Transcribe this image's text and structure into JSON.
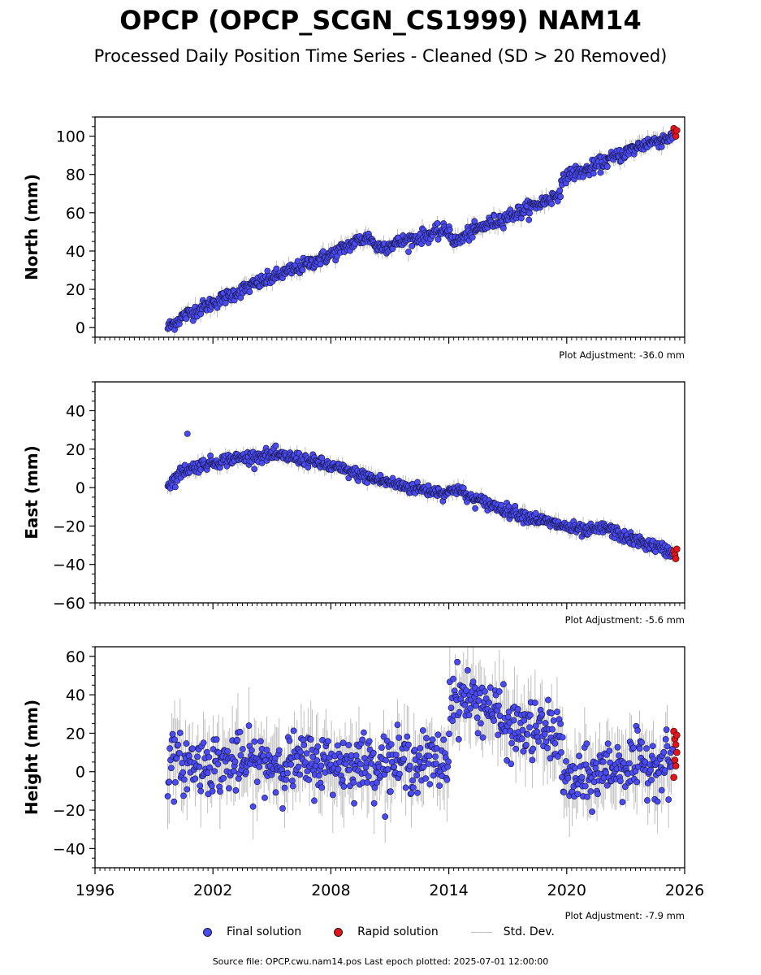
{
  "title": "OPCP (OPCP_SCGN_CS1999) NAM14",
  "subtitle": "Processed Daily Position Time Series - Cleaned (SD > 20 Removed)",
  "legend": {
    "final": "Final solution",
    "rapid": "Rapid solution",
    "std": "Std. Dev."
  },
  "colors": {
    "final": "#4b4bf5",
    "rapid": "#e0151b",
    "std": "#bdbdbd"
  },
  "source": "Source file: OPCP.cwu.nam14.pos  Last epoch plotted: 2025-07-01 12:00:00",
  "chart_data": [
    {
      "type": "scatter",
      "ylabel": "North (mm)",
      "xlim": [
        1996,
        2026
      ],
      "ylim": [
        -5,
        110
      ],
      "yticks": [
        0,
        20,
        40,
        60,
        80,
        100
      ],
      "xticks": [
        1996,
        2002,
        2008,
        2014,
        2020,
        2026
      ],
      "show_x_tick_labels": false,
      "adjustment": "Plot Adjustment: -36.0 mm",
      "series": [
        {
          "name": "Final solution",
          "trend": [
            [
              1999.7,
              0
            ],
            [
              2000.5,
              6
            ],
            [
              2002,
              13
            ],
            [
              2004,
              22
            ],
            [
              2006,
              30
            ],
            [
              2008,
              38
            ],
            [
              2009.5,
              46
            ],
            [
              2010,
              47
            ],
            [
              2010.3,
              42
            ],
            [
              2011,
              43
            ],
            [
              2012,
              46
            ],
            [
              2014,
              51
            ],
            [
              2014.3,
              44
            ],
            [
              2015,
              49
            ],
            [
              2016,
              54
            ],
            [
              2018,
              62
            ],
            [
              2019.5,
              69
            ],
            [
              2020,
              80
            ],
            [
              2021,
              82
            ],
            [
              2022,
              87
            ],
            [
              2024,
              96
            ],
            [
              2025.5,
              100
            ]
          ],
          "scatter": 1.8
        },
        {
          "name": "Rapid solution",
          "x": [
            2025.45,
            2025.5,
            2025.55,
            2025.6
          ],
          "y": [
            104,
            102,
            100,
            103
          ]
        }
      ]
    },
    {
      "type": "scatter",
      "ylabel": "East (mm)",
      "xlim": [
        1996,
        2026
      ],
      "ylim": [
        -60,
        55
      ],
      "yticks": [
        -60,
        -40,
        -20,
        0,
        20,
        40
      ],
      "xticks": [
        1996,
        2002,
        2008,
        2014,
        2020,
        2026
      ],
      "show_x_tick_labels": false,
      "adjustment": "Plot Adjustment: -5.6 mm",
      "series": [
        {
          "name": "Final solution",
          "trend": [
            [
              1999.7,
              1
            ],
            [
              2000.5,
              9
            ],
            [
              2001.5,
              12
            ],
            [
              2003,
              15
            ],
            [
              2005,
              17
            ],
            [
              2006.5,
              15
            ],
            [
              2008,
              11
            ],
            [
              2010,
              5
            ],
            [
              2012,
              0
            ],
            [
              2014,
              -3
            ],
            [
              2014.3,
              0
            ],
            [
              2015,
              -5
            ],
            [
              2017,
              -12
            ],
            [
              2019,
              -18
            ],
            [
              2021,
              -23
            ],
            [
              2022,
              -21
            ],
            [
              2023,
              -26
            ],
            [
              2025.5,
              -34
            ]
          ],
          "scatter": 1.6,
          "outliers": [
            [
              2000.7,
              28
            ]
          ]
        },
        {
          "name": "Rapid solution",
          "x": [
            2025.45,
            2025.5,
            2025.55,
            2025.6
          ],
          "y": [
            -33,
            -35,
            -37,
            -32
          ]
        }
      ]
    },
    {
      "type": "scatter",
      "ylabel": "Height (mm)",
      "xlim": [
        1996,
        2026
      ],
      "ylim": [
        -50,
        65
      ],
      "yticks": [
        -40,
        -20,
        0,
        20,
        40,
        60
      ],
      "xticks": [
        1996,
        2002,
        2008,
        2014,
        2020,
        2026
      ],
      "show_x_tick_labels": true,
      "adjustment": "Plot Adjustment: -7.9 mm",
      "series": [
        {
          "name": "Final solution",
          "trend": [
            [
              1999.7,
              4
            ],
            [
              2014,
              5
            ],
            [
              2014.05,
              40
            ],
            [
              2016,
              35
            ],
            [
              2017,
              22
            ],
            [
              2019.7,
              20
            ],
            [
              2019.8,
              -5
            ],
            [
              2021,
              -5
            ],
            [
              2022,
              2
            ],
            [
              2025.5,
              5
            ]
          ],
          "scatter": 7.5
        },
        {
          "name": "Rapid solution",
          "x": [
            2025.45,
            2025.5,
            2025.55,
            2025.6,
            2025.5,
            2025.55,
            2025.45,
            2025.6
          ],
          "y": [
            21,
            17,
            14,
            10,
            6,
            3,
            -3,
            19
          ]
        }
      ]
    }
  ]
}
